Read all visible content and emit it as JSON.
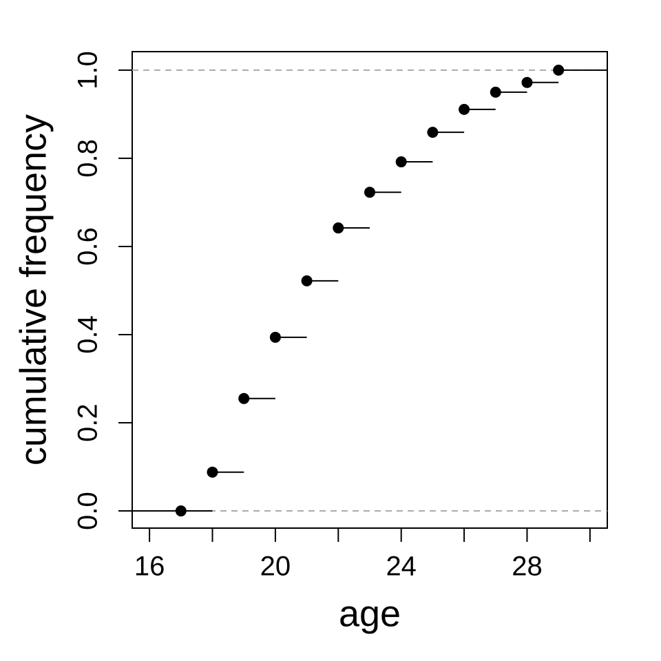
{
  "chart_data": {
    "type": "step",
    "x_label": "age",
    "y_label": "cumulative frequency",
    "x": [
      17,
      18,
      19,
      20,
      21,
      22,
      23,
      24,
      25,
      26,
      27,
      28,
      29
    ],
    "values": [
      0,
      0.088,
      0.255,
      0.394,
      0.522,
      0.642,
      0.723,
      0.792,
      0.859,
      0.911,
      0.95,
      0.972,
      1.0
    ],
    "color": "#000000",
    "xlim": [
      15.45,
      30.55
    ],
    "ylim": [
      -0.039,
      1.042
    ],
    "xticks": [
      16,
      20,
      24,
      28
    ],
    "xticks_unlabeled": [
      18,
      22,
      26,
      30
    ],
    "yticks": [
      {
        "value": 0,
        "label": "0.0"
      },
      0.2,
      0.4,
      0.6,
      0.8,
      {
        "value": 1,
        "label": "1.0"
      }
    ],
    "reference_lines": [
      0,
      1
    ],
    "reference_color": "#aaaaaa"
  }
}
